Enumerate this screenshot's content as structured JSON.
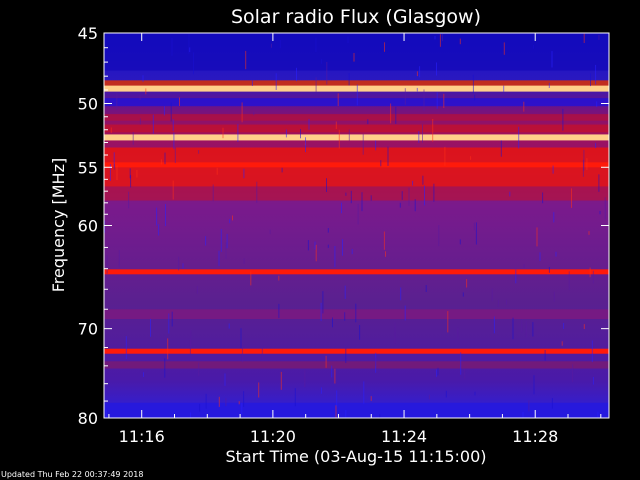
{
  "chart_data": {
    "type": "heatmap",
    "title": "Solar radio Flux (Glasgow)",
    "xlabel": "Start Time (03-Aug-15 11:15:00)",
    "ylabel": "Frequency [MHz]",
    "x_ticks": [
      "11:16",
      "11:20",
      "11:24",
      "11:28"
    ],
    "x_tick_minutes": [
      16,
      20,
      24,
      28
    ],
    "xlim_minutes": [
      14.85,
      30.25
    ],
    "y_ticks": [
      45,
      50,
      55,
      60,
      70,
      80
    ],
    "ylim": [
      45,
      80
    ],
    "y_scale": "log",
    "colors": {
      "background": "#000000",
      "low": "#1a1ae0",
      "mid": "#7a1f9a",
      "high": "#ff1a0a",
      "saturated": "#ffd08a"
    },
    "bright_bands_mhz": [
      {
        "freq": 48.9,
        "level": "saturated"
      },
      {
        "freq": 52.6,
        "level": "saturated"
      },
      {
        "freq": 54.8,
        "level": "high"
      },
      {
        "freq": 64.3,
        "level": "high"
      },
      {
        "freq": 72.4,
        "level": "high"
      }
    ]
  },
  "footer": {
    "updated": "Updated Thu Feb 22 00:37:49 2018"
  }
}
